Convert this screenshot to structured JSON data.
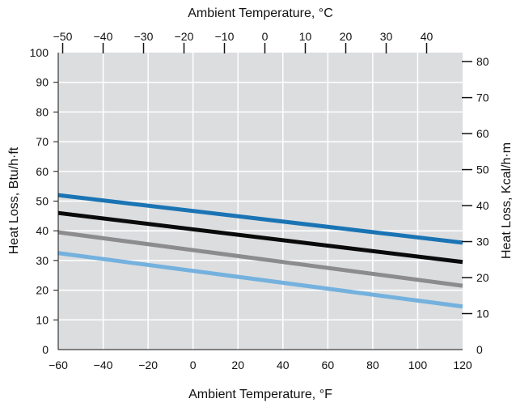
{
  "chart_data": {
    "type": "line",
    "title": "",
    "xlabel": "Ambient Temperature, °F",
    "ylabel": "Heat Loss, Btu/h·ft",
    "x2label": "Ambient Temperature, °C",
    "y2label": "Heat Loss, Kcal/h·m",
    "xlim": [
      -60,
      120
    ],
    "ylim": [
      0,
      100
    ],
    "x2lim": [
      -51.1,
      48.9
    ],
    "y2lim": [
      0,
      82.5
    ],
    "xticks": [
      -60,
      -40,
      -20,
      0,
      20,
      40,
      60,
      80,
      100,
      120
    ],
    "yticks": [
      0,
      10,
      20,
      30,
      40,
      50,
      60,
      70,
      80,
      90,
      100
    ],
    "x2ticks": [
      -50,
      -40,
      -30,
      -20,
      -10,
      0,
      10,
      20,
      30,
      40
    ],
    "y2ticks": [
      0,
      10,
      20,
      30,
      40,
      50,
      60,
      70,
      80
    ],
    "grid": true,
    "background": "#dcdddf",
    "series": [
      {
        "color": "#1a74b4",
        "x": [
          -60,
          120
        ],
        "y": [
          52,
          36
        ]
      },
      {
        "color": "#0a0a0a",
        "x": [
          -60,
          120
        ],
        "y": [
          46,
          29.5
        ]
      },
      {
        "color": "#8c8c8e",
        "x": [
          -60,
          120
        ],
        "y": [
          39.5,
          21.5
        ]
      },
      {
        "color": "#74b1de",
        "x": [
          -60,
          120
        ],
        "y": [
          32.5,
          14.5
        ]
      }
    ]
  }
}
